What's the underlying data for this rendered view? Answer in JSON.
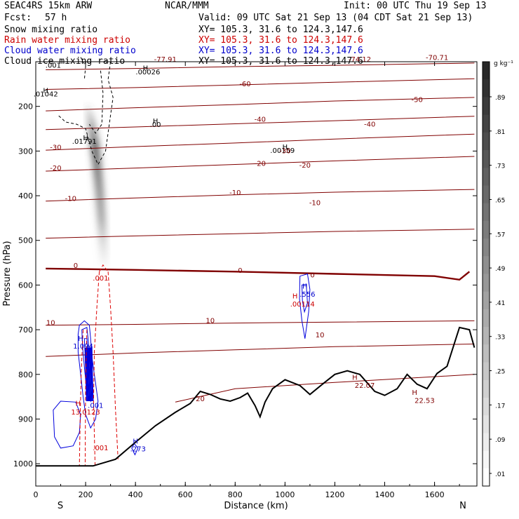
{
  "header": {
    "model": "SEAC4RS 15km ARW",
    "org": "NCAR/MMM",
    "init": "Init: 00 UTC Thu 19 Sep 13",
    "fcst_label": "Fcst:",
    "fcst_value": "57 h",
    "valid": "Valid: 09 UTC Sat 21 Sep 13 (04 CDT Sat 21 Sep 13)",
    "fields": [
      {
        "name": "Snow mixing ratio",
        "color": "#000000",
        "xy": "XY= 105.3, 31.6 to 124.3,147.6"
      },
      {
        "name": "Rain water mixing ratio",
        "color": "#cc0000",
        "xy": "XY= 105.3, 31.6 to 124.3,147.6"
      },
      {
        "name": "Cloud water mixing ratio",
        "color": "#0000cc",
        "xy": "XY= 105.3, 31.6 to 124.3,147.6"
      },
      {
        "name": "Cloud ice mixing ratio",
        "color": "#000000",
        "xy": "XY= 105.3, 31.6 to 124.3,147.6"
      }
    ]
  },
  "chart_data": {
    "type": "cross-section",
    "xlabel": "Distance (km)",
    "ylabel": "Pressure (hPa)",
    "xlim": [
      0,
      1770
    ],
    "ylim": [
      1050,
      100
    ],
    "x_ticks": [
      0,
      200,
      400,
      600,
      800,
      1000,
      1200,
      1400,
      1600
    ],
    "y_ticks": [
      200,
      300,
      400,
      500,
      600,
      700,
      800,
      900,
      1000
    ],
    "x_end_labels": {
      "left": "S",
      "right": "N"
    },
    "colorbar": {
      "unit": "g kg⁻¹",
      "labels": [
        ".89",
        ".81",
        ".73",
        ".65",
        ".57",
        ".49",
        ".41",
        ".33",
        ".25",
        ".17",
        ".09",
        ".01"
      ]
    },
    "terrain": [
      [
        0,
        1005
      ],
      [
        230,
        1005
      ],
      [
        320,
        990
      ],
      [
        400,
        952
      ],
      [
        480,
        915
      ],
      [
        560,
        885
      ],
      [
        620,
        865
      ],
      [
        660,
        838
      ],
      [
        700,
        845
      ],
      [
        740,
        855
      ],
      [
        780,
        860
      ],
      [
        820,
        852
      ],
      [
        850,
        842
      ],
      [
        880,
        870
      ],
      [
        900,
        895
      ],
      [
        920,
        862
      ],
      [
        950,
        832
      ],
      [
        1000,
        812
      ],
      [
        1060,
        825
      ],
      [
        1100,
        845
      ],
      [
        1150,
        822
      ],
      [
        1200,
        800
      ],
      [
        1250,
        792
      ],
      [
        1300,
        800
      ],
      [
        1360,
        838
      ],
      [
        1400,
        847
      ],
      [
        1450,
        832
      ],
      [
        1490,
        800
      ],
      [
        1530,
        822
      ],
      [
        1570,
        832
      ],
      [
        1610,
        798
      ],
      [
        1650,
        782
      ],
      [
        1700,
        695
      ],
      [
        1740,
        700
      ],
      [
        1760,
        740
      ]
    ],
    "temperature_contours": [
      {
        "label": "-70",
        "color": "#800000",
        "bold": false,
        "points": [
          [
            40,
            118
          ],
          [
            400,
            115
          ],
          [
            800,
            111
          ],
          [
            1200,
            108
          ],
          [
            1760,
            103
          ]
        ]
      },
      {
        "label": "-60",
        "color": "#800000",
        "bold": false,
        "points": [
          [
            40,
            162
          ],
          [
            400,
            158
          ],
          [
            800,
            152
          ],
          [
            1200,
            146
          ],
          [
            1760,
            138
          ]
        ]
      },
      {
        "label": "-50",
        "color": "#800000",
        "bold": false,
        "points": [
          [
            40,
            210
          ],
          [
            400,
            203
          ],
          [
            800,
            196
          ],
          [
            1200,
            188
          ],
          [
            1760,
            180
          ]
        ]
      },
      {
        "label": "-40",
        "color": "#800000",
        "bold": false,
        "points": [
          [
            40,
            252
          ],
          [
            400,
            246
          ],
          [
            800,
            239
          ],
          [
            1200,
            232
          ],
          [
            1760,
            222
          ]
        ]
      },
      {
        "label": "-30",
        "color": "#800000",
        "bold": false,
        "points": [
          [
            40,
            298
          ],
          [
            400,
            290
          ],
          [
            800,
            282
          ],
          [
            1200,
            273
          ],
          [
            1760,
            262
          ]
        ]
      },
      {
        "label": "-20",
        "color": "#800000",
        "bold": false,
        "points": [
          [
            40,
            345
          ],
          [
            400,
            338
          ],
          [
            800,
            330
          ],
          [
            1200,
            322
          ],
          [
            1760,
            312
          ]
        ]
      },
      {
        "label": "-10",
        "color": "#800000",
        "bold": false,
        "points": [
          [
            40,
            412
          ],
          [
            400,
            405
          ],
          [
            800,
            398
          ],
          [
            1200,
            392
          ],
          [
            1760,
            386
          ]
        ]
      },
      {
        "label": "",
        "color": "#800000",
        "bold": false,
        "points": [
          [
            40,
            495
          ],
          [
            400,
            490
          ],
          [
            800,
            485
          ],
          [
            1200,
            480
          ],
          [
            1760,
            475
          ]
        ]
      },
      {
        "label": "0",
        "color": "#800000",
        "bold": true,
        "points": [
          [
            40,
            563
          ],
          [
            400,
            566
          ],
          [
            800,
            570
          ],
          [
            1200,
            575
          ],
          [
            1600,
            580
          ],
          [
            1700,
            588
          ],
          [
            1740,
            570
          ]
        ]
      },
      {
        "label": "10",
        "color": "#800000",
        "bold": false,
        "points": [
          [
            40,
            690
          ],
          [
            400,
            688
          ],
          [
            800,
            685
          ],
          [
            1200,
            683
          ],
          [
            1760,
            680
          ]
        ]
      },
      {
        "label": "",
        "color": "#800000",
        "bold": false,
        "points": [
          [
            40,
            760
          ],
          [
            400,
            752
          ],
          [
            800,
            745
          ],
          [
            1200,
            738
          ],
          [
            1760,
            732
          ]
        ]
      },
      {
        "label": "20",
        "color": "#800000",
        "bold": false,
        "points": [
          [
            560,
            862
          ],
          [
            800,
            832
          ],
          [
            1200,
            818
          ],
          [
            1760,
            800
          ]
        ]
      }
    ],
    "labels": [
      {
        "text": "H",
        "x": 440,
        "y": 120,
        "color": "#000000"
      },
      {
        "text": ".00026",
        "x": 450,
        "y": 128,
        "color": "#000000"
      },
      {
        "text": "H",
        "x": 40,
        "y": 170,
        "color": "#000000"
      },
      {
        "text": ".01042",
        "x": 40,
        "y": 178,
        "color": "#000000"
      },
      {
        "text": "H",
        "x": 480,
        "y": 238,
        "color": "#000000"
      },
      {
        "text": ".00",
        "x": 480,
        "y": 246,
        "color": "#000000"
      },
      {
        "text": "H",
        "x": 200,
        "y": 276,
        "color": "#000000"
      },
      {
        "text": ".01791",
        "x": 195,
        "y": 284,
        "color": "#000000"
      },
      {
        "text": ".001",
        "x": 70,
        "y": 113,
        "color": "#000000"
      },
      {
        "text": "H",
        "x": 1000,
        "y": 296,
        "color": "#000000"
      },
      {
        "text": ".00159",
        "x": 990,
        "y": 304,
        "color": "#000000"
      },
      {
        "text": "-77.91",
        "x": 520,
        "y": 100,
        "color": "#800000"
      },
      {
        "text": "-74.12",
        "x": 1300,
        "y": 100,
        "color": "#800000"
      },
      {
        "text": "-70.71",
        "x": 1610,
        "y": 96,
        "color": "#800000"
      },
      {
        "text": "-60",
        "x": 840,
        "y": 155,
        "color": "#800000"
      },
      {
        "text": "-50",
        "x": 1530,
        "y": 190,
        "color": "#800000"
      },
      {
        "text": "-40",
        "x": 1340,
        "y": 245,
        "color": "#800000"
      },
      {
        "text": "-40",
        "x": 900,
        "y": 234,
        "color": "#800000"
      },
      {
        "text": "-30",
        "x": 80,
        "y": 297,
        "color": "#800000"
      },
      {
        "text": "-30",
        "x": 1000,
        "y": 305,
        "color": "#800000"
      },
      {
        "text": "-20",
        "x": 80,
        "y": 343,
        "color": "#800000"
      },
      {
        "text": "-20",
        "x": 900,
        "y": 333,
        "color": "#800000"
      },
      {
        "text": "-20",
        "x": 1080,
        "y": 337,
        "color": "#800000"
      },
      {
        "text": "-10",
        "x": 140,
        "y": 412,
        "color": "#800000"
      },
      {
        "text": "-10",
        "x": 800,
        "y": 398,
        "color": "#800000"
      },
      {
        "text": "-10",
        "x": 1120,
        "y": 421,
        "color": "#800000"
      },
      {
        "text": "0",
        "x": 160,
        "y": 562,
        "color": "#800000"
      },
      {
        "text": "0",
        "x": 820,
        "y": 573,
        "color": "#800000"
      },
      {
        "text": "0",
        "x": 1110,
        "y": 583,
        "color": "#800000"
      },
      {
        "text": "10",
        "x": 60,
        "y": 690,
        "color": "#800000"
      },
      {
        "text": "10",
        "x": 700,
        "y": 685,
        "color": "#800000"
      },
      {
        "text": "10",
        "x": 1140,
        "y": 717,
        "color": "#800000"
      },
      {
        "text": "20",
        "x": 660,
        "y": 860,
        "color": "#800000"
      },
      {
        "text": "H",
        "x": 1280,
        "y": 812,
        "color": "#800000"
      },
      {
        "text": "22.07",
        "x": 1320,
        "y": 830,
        "color": "#800000"
      },
      {
        "text": "H",
        "x": 1520,
        "y": 846,
        "color": "#800000"
      },
      {
        "text": "22.53",
        "x": 1560,
        "y": 864,
        "color": "#800000"
      },
      {
        "text": ".001",
        "x": 260,
        "y": 590,
        "color": "#cc0000"
      },
      {
        "text": "H",
        "x": 1040,
        "y": 630,
        "color": "#cc0000"
      },
      {
        "text": ".00114",
        "x": 1070,
        "y": 648,
        "color": "#cc0000"
      },
      {
        "text": "H",
        "x": 170,
        "y": 870,
        "color": "#cc0000"
      },
      {
        "text": "13.0123",
        "x": 200,
        "y": 890,
        "color": "#cc0000"
      },
      {
        "text": ".001",
        "x": 260,
        "y": 970,
        "color": "#cc0000"
      },
      {
        "text": "H",
        "x": 1080,
        "y": 608,
        "color": "#0000cc"
      },
      {
        "text": ".556",
        "x": 1090,
        "y": 626,
        "color": "#0000cc"
      },
      {
        "text": "H",
        "x": 180,
        "y": 725,
        "color": "#0000cc"
      },
      {
        "text": "1.094",
        "x": 190,
        "y": 742,
        "color": "#0000cc"
      },
      {
        "text": ".001",
        "x": 240,
        "y": 875,
        "color": "#0000cc"
      },
      {
        "text": "H",
        "x": 400,
        "y": 955,
        "color": "#0000cc"
      },
      {
        "text": ".273",
        "x": 410,
        "y": 972,
        "color": "#0000cc"
      }
    ]
  }
}
